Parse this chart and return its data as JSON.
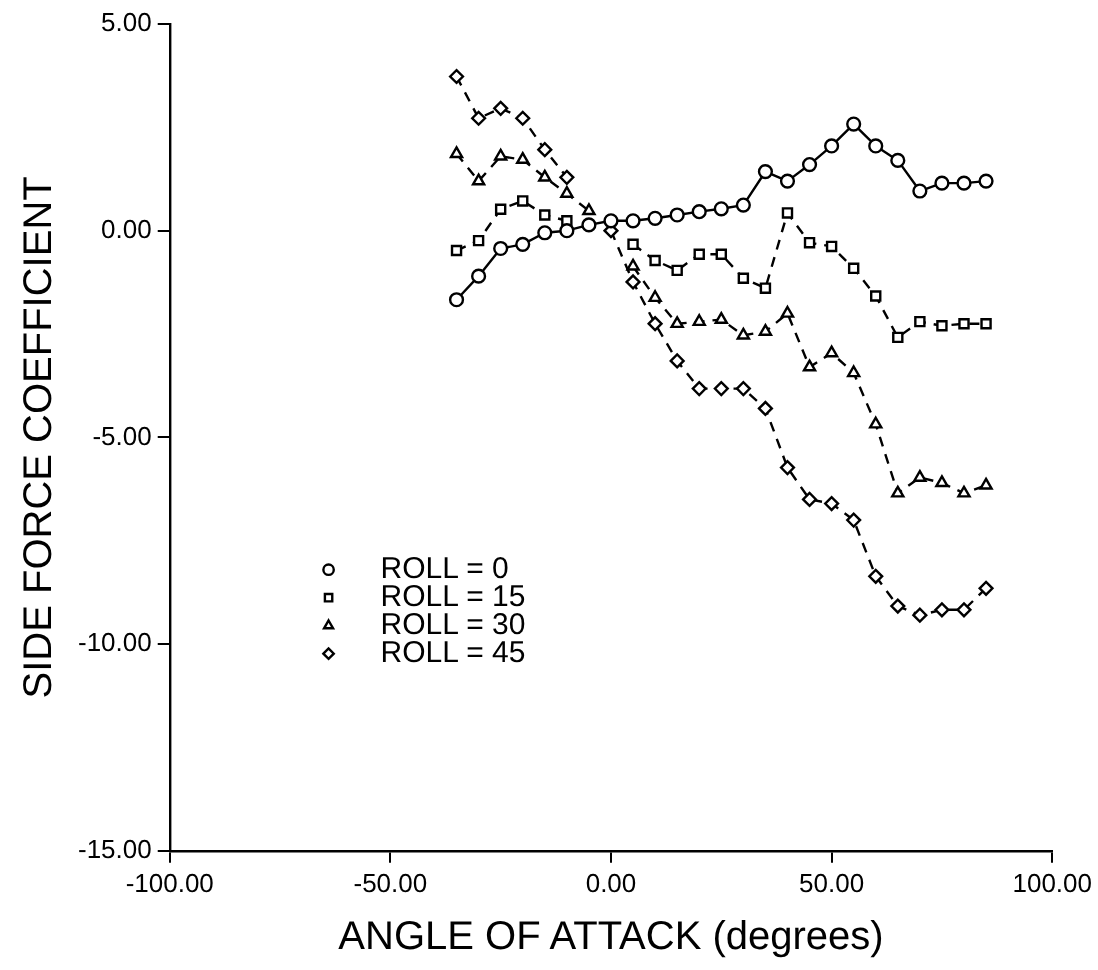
{
  "chart_data": {
    "type": "line",
    "xlabel": "ANGLE OF ATTACK (degrees)",
    "ylabel": "SIDE FORCE COEFFICIENT",
    "x": [
      -35,
      -30,
      -25,
      -20,
      -15,
      -10,
      -5,
      0,
      5,
      10,
      15,
      20,
      25,
      30,
      35,
      40,
      45,
      50,
      55,
      60,
      65,
      70,
      75,
      80,
      85
    ],
    "series": [
      {
        "name": "ROLL = 0",
        "color": "#000000",
        "marker": "circle",
        "line_style": "solid",
        "values": [
          -1.67,
          -1.1,
          -0.43,
          -0.33,
          -0.05,
          0,
          0.14,
          0.24,
          0.24,
          0.3,
          0.38,
          0.46,
          0.53,
          0.62,
          1.43,
          1.2,
          1.6,
          2.05,
          2.58,
          2.05,
          1.7,
          0.96,
          1.15,
          1.15,
          1.2
        ]
      },
      {
        "name": "ROLL = 15",
        "color": "#000000",
        "marker": "square",
        "line_style": "dashed",
        "values": [
          -0.48,
          -0.24,
          0.52,
          0.72,
          0.38,
          0.24,
          null,
          null,
          -0.33,
          -0.72,
          -0.96,
          -0.57,
          -0.57,
          -1.15,
          -1.39,
          0.43,
          -0.29,
          -0.38,
          -0.91,
          -1.58,
          -2.58,
          -2.2,
          -2.3,
          -2.25,
          -2.25
        ]
      },
      {
        "name": "ROLL = 30",
        "color": "#000000",
        "marker": "triangle",
        "line_style": "dashed",
        "values": [
          1.86,
          1.2,
          1.8,
          1.72,
          1.29,
          0.9,
          0.48,
          null,
          -0.86,
          -1.62,
          -2.25,
          -2.2,
          -2.15,
          -2.53,
          -2.44,
          -2.0,
          -3.3,
          -2.96,
          -3.44,
          -4.68,
          -6.35,
          -5.97,
          -6.1,
          -6.35,
          -6.16
        ]
      },
      {
        "name": "ROLL = 45",
        "color": "#000000",
        "marker": "diamond",
        "line_style": "dashed",
        "values": [
          3.73,
          2.72,
          2.96,
          2.72,
          1.96,
          1.29,
          null,
          0,
          -1.24,
          -2.25,
          -3.15,
          -3.82,
          -3.82,
          -3.82,
          -4.3,
          -5.73,
          -6.5,
          -6.6,
          -7.0,
          -8.36,
          -9.08,
          -9.3,
          -9.17,
          -9.17,
          -8.65
        ]
      }
    ],
    "xlim": [
      -100,
      100
    ],
    "xticks": [
      {
        "value": -100,
        "label": "-100.00"
      },
      {
        "value": -50,
        "label": "-50.00"
      },
      {
        "value": 0,
        "label": "0.00"
      },
      {
        "value": 50,
        "label": "50.00"
      },
      {
        "value": 100,
        "label": "100.00"
      }
    ],
    "ylim": [
      -15,
      5
    ],
    "yticks": [
      {
        "value": -15,
        "label": "-15.00"
      },
      {
        "value": -10,
        "label": "-10.00"
      },
      {
        "value": -5,
        "label": "-5.00"
      },
      {
        "value": 0,
        "label": "0.00"
      },
      {
        "value": 5,
        "label": "5.00"
      }
    ],
    "grid": false,
    "legend": "bottom left"
  }
}
